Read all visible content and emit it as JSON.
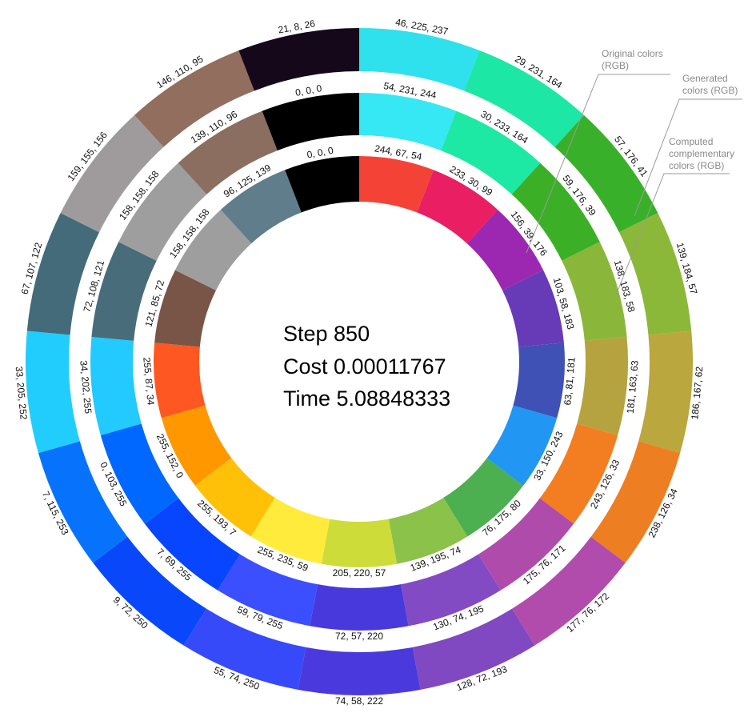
{
  "stats": {
    "step": "Step 850",
    "cost": "Cost 0.00011767",
    "time": "Time 5.08848333"
  },
  "legend": {
    "original": [
      "Original colors",
      "(RGB)"
    ],
    "generated": [
      "Generated",
      "colors (RGB)"
    ],
    "computed": [
      "Computed",
      "complementary",
      "colors (RGB)"
    ]
  },
  "rings": {
    "outer": [
      {
        "color": "#2ee1ed",
        "label": "46, 225, 237"
      },
      {
        "color": "#1de7a4",
        "label": "29, 231, 164"
      },
      {
        "color": "#39b029",
        "label": "57, 176, 41"
      },
      {
        "color": "#8bb839",
        "label": "139, 184, 57"
      },
      {
        "color": "#baa73e",
        "label": "186, 167, 62"
      },
      {
        "color": "#ee7e22",
        "label": "238, 126, 34"
      },
      {
        "color": "#b14cac",
        "label": "177, 76, 172"
      },
      {
        "color": "#8048c1",
        "label": "128, 72, 193"
      },
      {
        "color": "#4a3ade",
        "label": "74, 58, 222"
      },
      {
        "color": "#374afa",
        "label": "55, 74, 250"
      },
      {
        "color": "#0948fa",
        "label": "9, 72, 250"
      },
      {
        "color": "#0773fd",
        "label": "7, 115, 253"
      },
      {
        "color": "#21cdfc",
        "label": "33, 205, 252"
      },
      {
        "color": "#436b7a",
        "label": "67, 107, 122"
      },
      {
        "color": "#9f9b9c",
        "label": "159, 155, 156"
      },
      {
        "color": "#926e5f",
        "label": "146, 110, 95"
      },
      {
        "color": "#15081a",
        "label": "21, 8, 26"
      }
    ],
    "middle": [
      {
        "color": "#36e7f4",
        "label": "54, 231, 244"
      },
      {
        "color": "#1ee9a4",
        "label": "30, 233, 164"
      },
      {
        "color": "#3bb027",
        "label": "59, 176, 39"
      },
      {
        "color": "#8ab73a",
        "label": "138, 183, 58"
      },
      {
        "color": "#b5a33f",
        "label": "181, 163, 63"
      },
      {
        "color": "#f37e21",
        "label": "243, 126, 33"
      },
      {
        "color": "#af4cab",
        "label": "175, 76, 171"
      },
      {
        "color": "#824ac3",
        "label": "130, 74, 195"
      },
      {
        "color": "#4839dc",
        "label": "72, 57, 220"
      },
      {
        "color": "#3b4fff",
        "label": "59, 79, 255"
      },
      {
        "color": "#0745ff",
        "label": "7, 69, 255"
      },
      {
        "color": "#0067ff",
        "label": "0, 103, 255"
      },
      {
        "color": "#22caff",
        "label": "34, 202, 255"
      },
      {
        "color": "#486c79",
        "label": "72, 108, 121"
      },
      {
        "color": "#9e9e9e",
        "label": "158, 158, 158"
      },
      {
        "color": "#8b6e60",
        "label": "139, 110, 96"
      },
      {
        "color": "#000000",
        "label": "0, 0, 0"
      }
    ],
    "inner": [
      {
        "color": "#f44336",
        "label": "244, 67, 54"
      },
      {
        "color": "#e91e63",
        "label": "233, 30, 99"
      },
      {
        "color": "#9c27b0",
        "label": "156, 39, 176"
      },
      {
        "color": "#673ab7",
        "label": "103, 58, 183"
      },
      {
        "color": "#3f51b5",
        "label": "63, 81, 181"
      },
      {
        "color": "#2196f3",
        "label": "33, 150, 243"
      },
      {
        "color": "#4caf50",
        "label": "76, 175, 80"
      },
      {
        "color": "#8bc34a",
        "label": "139, 195, 74"
      },
      {
        "color": "#cddc39",
        "label": "205, 220, 57"
      },
      {
        "color": "#ffeb3b",
        "label": "255, 235, 59"
      },
      {
        "color": "#ffc107",
        "label": "255, 193, 7"
      },
      {
        "color": "#ff9800",
        "label": "255, 152, 0"
      },
      {
        "color": "#ff5722",
        "label": "255, 87, 34"
      },
      {
        "color": "#795548",
        "label": "121, 85, 72"
      },
      {
        "color": "#9e9e9e",
        "label": "158, 158, 158"
      },
      {
        "color": "#607d8b",
        "label": "96, 125, 139"
      },
      {
        "color": "#000000",
        "label": "0, 0, 0"
      }
    ]
  }
}
